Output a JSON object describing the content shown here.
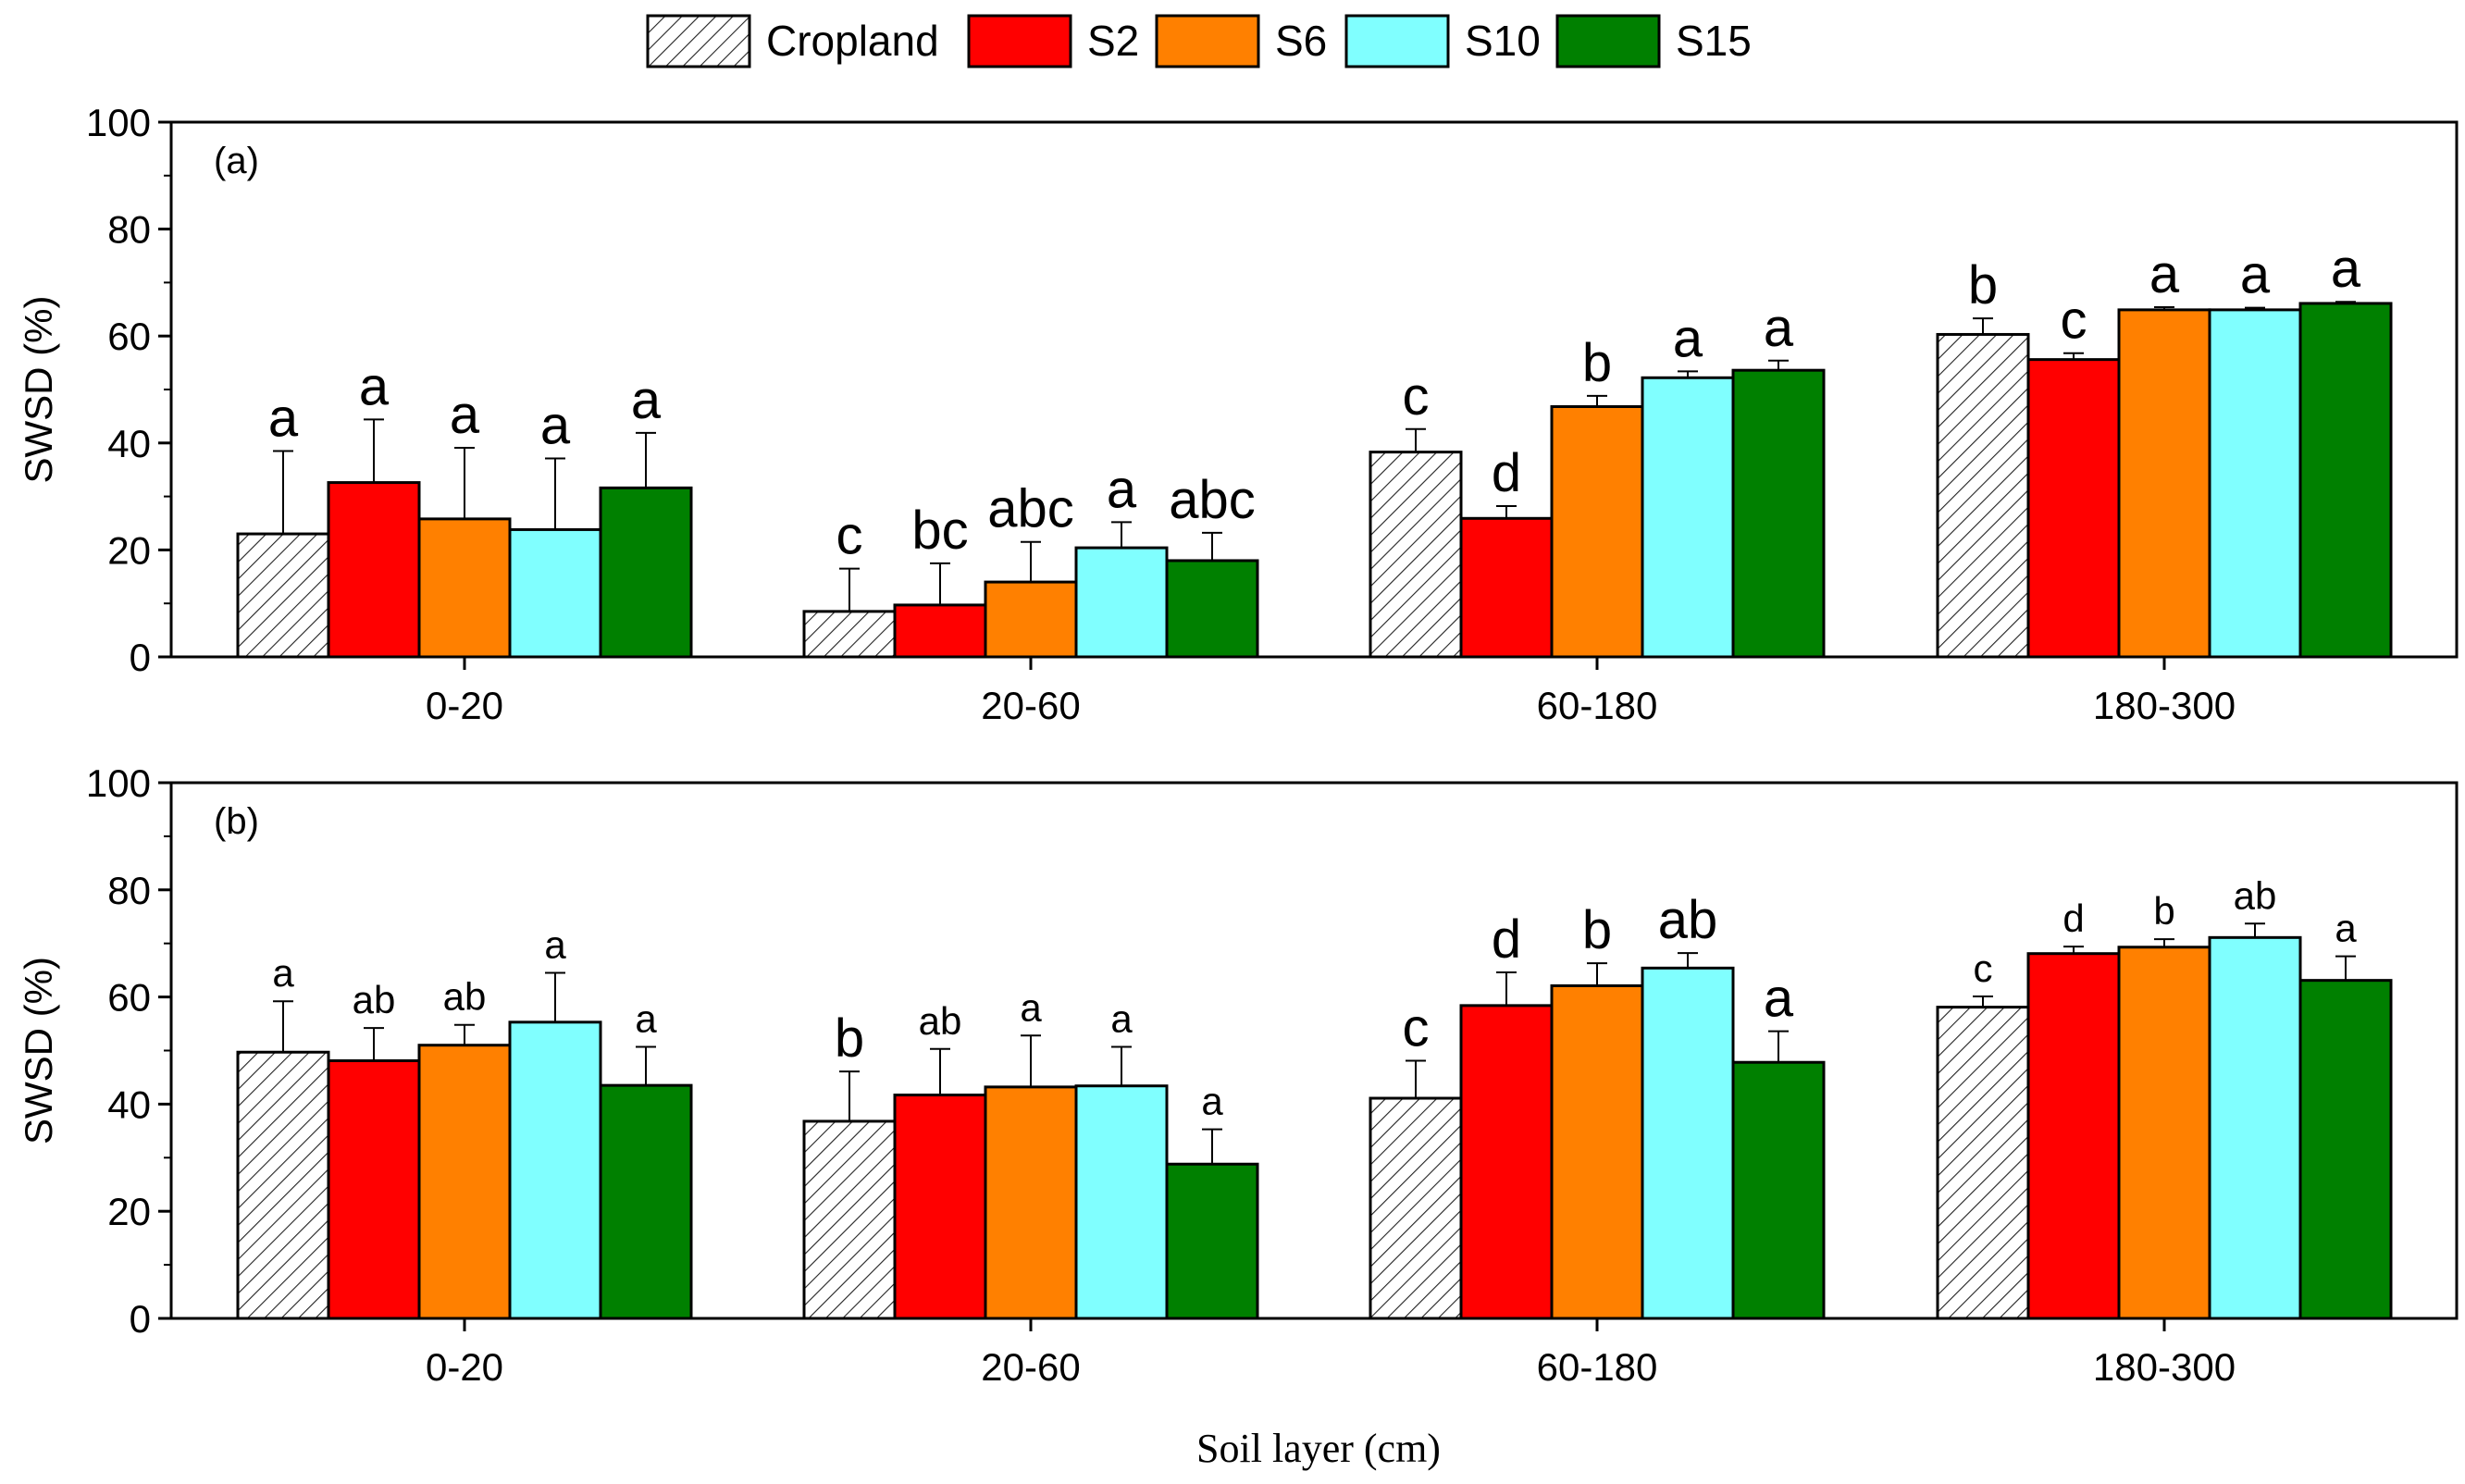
{
  "legend": [
    {
      "name": "Cropland",
      "color": "#ffffff",
      "pattern": "hatch"
    },
    {
      "name": "S2",
      "color": "#ff0000",
      "pattern": "solid"
    },
    {
      "name": "S6",
      "color": "#ff8000",
      "pattern": "solid"
    },
    {
      "name": "S10",
      "color": "#80ffff",
      "pattern": "solid"
    },
    {
      "name": "S15",
      "color": "#008000",
      "pattern": "solid"
    }
  ],
  "xlabel": "Soil layer (cm)",
  "chart_data": [
    {
      "type": "bar",
      "panel_label": "(a)",
      "ylabel": "SWSD (%)",
      "ylim": [
        0,
        100
      ],
      "yticks": [
        0,
        20,
        40,
        60,
        80,
        100
      ],
      "categories": [
        "0-20",
        "20-60",
        "60-180",
        "180-300"
      ],
      "series": [
        {
          "name": "Cropland",
          "values": [
            23,
            8.5,
            38.3,
            60.3
          ],
          "errors": [
            15.5,
            8,
            4.3,
            3
          ],
          "letters": [
            "a",
            "c",
            "c",
            "b"
          ]
        },
        {
          "name": "S2",
          "values": [
            32.6,
            9.7,
            25.9,
            55.6
          ],
          "errors": [
            11.8,
            7.8,
            2.3,
            1.2
          ],
          "letters": [
            "a",
            "bc",
            "d",
            "c"
          ]
        },
        {
          "name": "S6",
          "values": [
            25.8,
            14,
            46.8,
            64.9
          ],
          "errors": [
            13.3,
            7.5,
            2,
            0.5
          ],
          "letters": [
            "a",
            "abc",
            "b",
            "a"
          ]
        },
        {
          "name": "S10",
          "values": [
            23.8,
            20.4,
            52.2,
            64.9
          ],
          "errors": [
            13.3,
            4.8,
            1.2,
            0.4
          ],
          "letters": [
            "a",
            "a",
            "a",
            "a"
          ]
        },
        {
          "name": "S15",
          "values": [
            31.6,
            18,
            53.6,
            66.1
          ],
          "errors": [
            10.3,
            5.2,
            1.8,
            0.3
          ],
          "letters": [
            "a",
            "abc",
            "a",
            "a"
          ]
        }
      ],
      "letter_size": "large"
    },
    {
      "type": "bar",
      "panel_label": "(b)",
      "ylabel": "SWSD (%)",
      "ylim": [
        0,
        100
      ],
      "yticks": [
        0,
        20,
        40,
        60,
        80,
        100
      ],
      "categories": [
        "0-20",
        "20-60",
        "60-180",
        "180-300"
      ],
      "series": [
        {
          "name": "Cropland",
          "values": [
            49.7,
            36.8,
            41.1,
            58.1
          ],
          "errors": [
            9.5,
            9.3,
            7,
            2
          ],
          "letters": [
            "a",
            "b",
            "c",
            "c"
          ]
        },
        {
          "name": "S2",
          "values": [
            48.1,
            41.7,
            58.4,
            68.1
          ],
          "errors": [
            6.1,
            8.6,
            6.2,
            1.3
          ],
          "letters": [
            "ab",
            "ab",
            "d",
            "d"
          ]
        },
        {
          "name": "S6",
          "values": [
            51,
            43.2,
            62.1,
            69.3
          ],
          "errors": [
            3.8,
            9.6,
            4.2,
            1.5
          ],
          "letters": [
            "ab",
            "a",
            "b",
            "b"
          ]
        },
        {
          "name": "S10",
          "values": [
            55.3,
            43.4,
            65.4,
            71.1
          ],
          "errors": [
            9.2,
            7.3,
            2.8,
            2.6
          ],
          "letters": [
            "a",
            "a",
            "ab",
            "ab"
          ]
        },
        {
          "name": "S15",
          "values": [
            43.5,
            28.8,
            47.8,
            63.1
          ],
          "errors": [
            7.2,
            6.5,
            5.8,
            4.5
          ],
          "letters": [
            "a",
            "a",
            "a",
            "a"
          ]
        }
      ],
      "letter_size": "mixed"
    }
  ]
}
